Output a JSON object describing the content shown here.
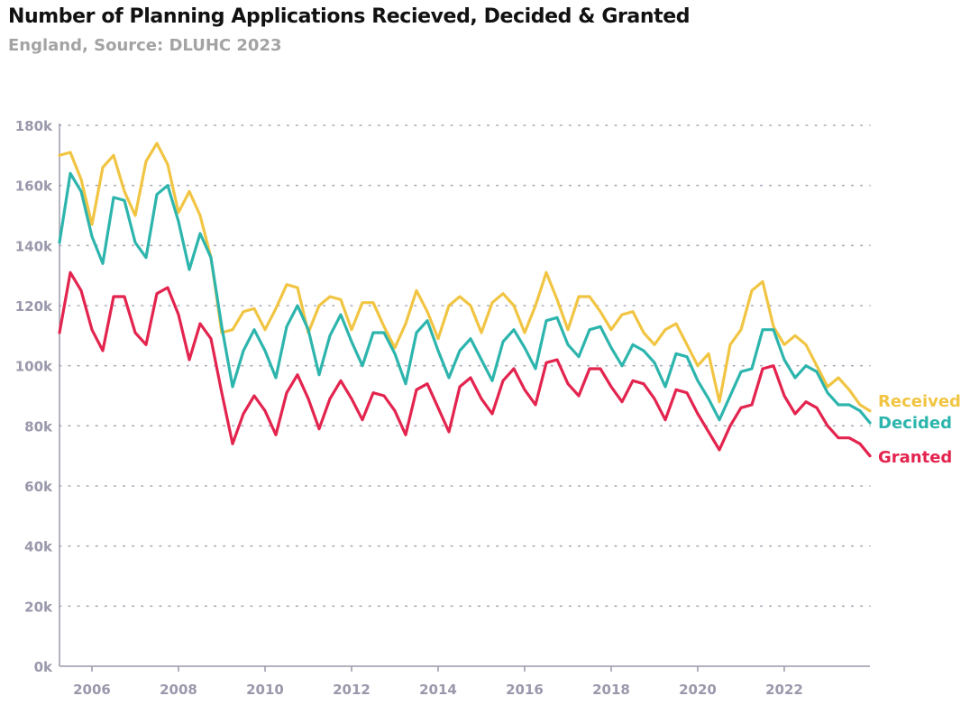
{
  "title": "Number of Planning Applications Recieved, Decided & Granted",
  "subtitle": "England, Source: DLUHC 2023",
  "colors": {
    "received": "#f1c543",
    "decided": "#2db5ad",
    "granted": "#e3244e",
    "axis": "#9a98ab",
    "grid": "#a8a8b8"
  },
  "chart_data": {
    "type": "line",
    "title": "Number of Planning Applications Recieved, Decided & Granted",
    "subtitle": "England, Source: DLUHC 2023",
    "xlabel": "",
    "ylabel": "",
    "xlim": [
      2005.25,
      2023.98
    ],
    "ylim": [
      0,
      180000
    ],
    "y_ticks": [
      0,
      20000,
      40000,
      60000,
      80000,
      100000,
      120000,
      140000,
      160000,
      180000
    ],
    "y_tick_labels": [
      "0k",
      "20k",
      "40k",
      "60k",
      "80k",
      "100k",
      "120k",
      "140k",
      "160k",
      "180k"
    ],
    "x_ticks": [
      2006,
      2008,
      2010,
      2012,
      2014,
      2016,
      2018,
      2020,
      2022
    ],
    "x_tick_labels": [
      "2006",
      "2008",
      "2010",
      "2012",
      "2014",
      "2016",
      "2018",
      "2020",
      "2022"
    ],
    "grid": "horizontal-dotted",
    "legend": "direct labels at right end of lines",
    "x": [
      2005.25,
      2005.5,
      2005.75,
      2006,
      2006.25,
      2006.5,
      2006.75,
      2007,
      2007.25,
      2007.5,
      2007.75,
      2008,
      2008.25,
      2008.5,
      2008.75,
      2009,
      2009.25,
      2009.5,
      2009.75,
      2010,
      2010.25,
      2010.5,
      2010.75,
      2011,
      2011.25,
      2011.5,
      2011.75,
      2012,
      2012.25,
      2012.5,
      2012.75,
      2013,
      2013.25,
      2013.5,
      2013.75,
      2014,
      2014.25,
      2014.5,
      2014.75,
      2015,
      2015.25,
      2015.5,
      2015.75,
      2016,
      2016.25,
      2016.5,
      2016.75,
      2017,
      2017.25,
      2017.5,
      2017.75,
      2018,
      2018.25,
      2018.5,
      2018.75,
      2019,
      2019.25,
      2019.5,
      2019.75,
      2020,
      2020.25,
      2020.5,
      2020.75,
      2021,
      2021.25,
      2021.5,
      2021.75,
      2022,
      2022.25,
      2022.5,
      2022.75,
      2023,
      2023.25,
      2023.5,
      2023.75,
      2023.98
    ],
    "series": [
      {
        "name": "Received",
        "key": "received",
        "values": [
          170000,
          171000,
          162000,
          147000,
          166000,
          170000,
          158000,
          150000,
          168000,
          174000,
          167000,
          151000,
          158000,
          150000,
          136000,
          111000,
          112000,
          118000,
          119000,
          112000,
          119000,
          127000,
          126000,
          111000,
          120000,
          123000,
          122000,
          112000,
          121000,
          121000,
          113000,
          106000,
          114000,
          125000,
          118000,
          109000,
          120000,
          123000,
          120000,
          111000,
          121000,
          124000,
          120000,
          111000,
          120000,
          131000,
          122000,
          112000,
          123000,
          123000,
          118000,
          112000,
          117000,
          118000,
          111000,
          107000,
          112000,
          114000,
          107000,
          100000,
          104000,
          88000,
          107000,
          112000,
          125000,
          128000,
          113000,
          107000,
          110000,
          107000,
          100000,
          93000,
          96000,
          92000,
          87000,
          85000
        ]
      },
      {
        "name": "Decided",
        "key": "decided",
        "values": [
          141000,
          164000,
          158000,
          143000,
          134000,
          156000,
          155000,
          141000,
          136000,
          157000,
          160000,
          148000,
          132000,
          144000,
          136000,
          113000,
          93000,
          105000,
          112000,
          105000,
          96000,
          113000,
          120000,
          112000,
          97000,
          110000,
          117000,
          108000,
          100000,
          111000,
          111000,
          104000,
          94000,
          111000,
          115000,
          105000,
          96000,
          105000,
          109000,
          102000,
          95000,
          108000,
          112000,
          106000,
          99000,
          115000,
          116000,
          107000,
          103000,
          112000,
          113000,
          106000,
          100000,
          107000,
          105000,
          101000,
          93000,
          104000,
          103000,
          95000,
          89000,
          82000,
          90000,
          98000,
          99000,
          112000,
          112000,
          102000,
          96000,
          100000,
          98000,
          91000,
          87000,
          87000,
          85000,
          81000
        ]
      },
      {
        "name": "Granted",
        "key": "granted",
        "values": [
          111000,
          131000,
          125000,
          112000,
          105000,
          123000,
          123000,
          111000,
          107000,
          124000,
          126000,
          117000,
          102000,
          114000,
          109000,
          91000,
          74000,
          84000,
          90000,
          85000,
          77000,
          91000,
          97000,
          89000,
          79000,
          89000,
          95000,
          89000,
          82000,
          91000,
          90000,
          85000,
          77000,
          92000,
          94000,
          86000,
          78000,
          93000,
          96000,
          89000,
          84000,
          95000,
          99000,
          92000,
          87000,
          101000,
          102000,
          94000,
          90000,
          99000,
          99000,
          93000,
          88000,
          95000,
          94000,
          89000,
          82000,
          92000,
          91000,
          84000,
          78000,
          72000,
          80000,
          86000,
          87000,
          99000,
          100000,
          90000,
          84000,
          88000,
          86000,
          80000,
          76000,
          76000,
          74000,
          70000
        ]
      }
    ]
  }
}
